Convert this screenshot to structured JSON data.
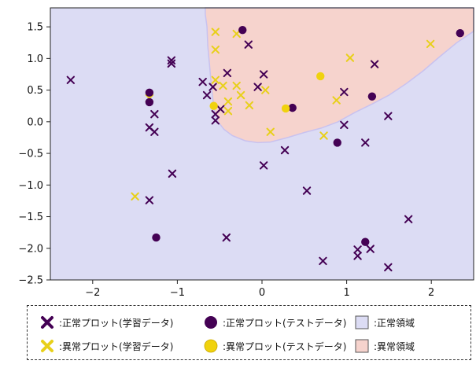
{
  "chart_data": {
    "type": "scatter",
    "xlim": [
      -2.5,
      2.5
    ],
    "ylim": [
      -2.5,
      1.8
    ],
    "x_ticks": [
      -2,
      -1,
      0,
      1,
      2
    ],
    "y_ticks": [
      1.5,
      1.0,
      0.5,
      0.0,
      -0.5,
      -1.0,
      -1.5,
      -2.0,
      -2.5
    ],
    "x_tick_labels": [
      "−2",
      "−1",
      "0",
      "1",
      "2"
    ],
    "y_tick_labels": [
      "1.5",
      "1.0",
      "0.5",
      "0.0",
      "−0.5",
      "−1.0",
      "−1.5",
      "−2.0",
      "−2.5"
    ],
    "grid": false,
    "background_colors": {
      "normal_region": "#dcdcf4",
      "anomaly_region": "#f6d3cd",
      "boundary": "#c9c2ef"
    },
    "anomaly_region_boundary": [
      [
        -0.67,
        1.8
      ],
      [
        -0.67,
        1.7
      ],
      [
        -0.65,
        1.5
      ],
      [
        -0.64,
        1.2
      ],
      [
        -0.62,
        0.9
      ],
      [
        -0.6,
        0.6
      ],
      [
        -0.58,
        0.35
      ],
      [
        -0.56,
        0.15
      ],
      [
        -0.52,
        0.0
      ],
      [
        -0.45,
        -0.12
      ],
      [
        -0.35,
        -0.22
      ],
      [
        -0.2,
        -0.3
      ],
      [
        -0.05,
        -0.33
      ],
      [
        0.1,
        -0.32
      ],
      [
        0.3,
        -0.25
      ],
      [
        0.5,
        -0.17
      ],
      [
        0.7,
        -0.1
      ],
      [
        0.9,
        0.0
      ],
      [
        1.1,
        0.15
      ],
      [
        1.3,
        0.28
      ],
      [
        1.5,
        0.42
      ],
      [
        1.7,
        0.6
      ],
      [
        1.9,
        0.8
      ],
      [
        2.1,
        1.03
      ],
      [
        2.3,
        1.25
      ],
      [
        2.5,
        1.43
      ],
      [
        2.5,
        1.8
      ]
    ],
    "series": [
      {
        "marker": "x",
        "color": "#440154",
        "points": [
          [
            -2.26,
            0.66
          ],
          [
            -1.07,
            0.97
          ],
          [
            -1.07,
            0.92
          ],
          [
            -1.27,
            0.12
          ],
          [
            -1.33,
            -0.09
          ],
          [
            -1.27,
            -0.16
          ],
          [
            -1.06,
            -0.82
          ],
          [
            -1.33,
            -1.24
          ],
          [
            -0.42,
            -1.83
          ],
          [
            -0.7,
            0.63
          ],
          [
            -0.65,
            0.42
          ],
          [
            -0.58,
            0.55
          ],
          [
            -0.55,
            0.12
          ],
          [
            -0.55,
            0.02
          ],
          [
            -0.49,
            0.2
          ],
          [
            -0.41,
            0.77
          ],
          [
            -0.16,
            1.22
          ],
          [
            -0.05,
            0.55
          ],
          [
            0.02,
            0.75
          ],
          [
            0.27,
            -0.45
          ],
          [
            0.02,
            -0.69
          ],
          [
            0.53,
            -1.09
          ],
          [
            0.97,
            0.47
          ],
          [
            0.97,
            -0.05
          ],
          [
            1.22,
            -0.33
          ],
          [
            1.33,
            0.91
          ],
          [
            1.49,
            0.09
          ],
          [
            1.73,
            -1.54
          ],
          [
            0.72,
            -2.2
          ],
          [
            1.13,
            -2.02
          ],
          [
            1.13,
            -2.12
          ],
          [
            1.28,
            -2.01
          ],
          [
            1.49,
            -2.3
          ]
        ]
      },
      {
        "marker": "x",
        "color": "#e8d01a",
        "points": [
          [
            -1.5,
            -1.18
          ],
          [
            -1.33,
            0.37
          ],
          [
            -0.55,
            1.42
          ],
          [
            -0.55,
            1.14
          ],
          [
            -0.55,
            0.66
          ],
          [
            -0.3,
            1.39
          ],
          [
            -0.46,
            0.57
          ],
          [
            -0.4,
            0.32
          ],
          [
            -0.4,
            0.17
          ],
          [
            -0.3,
            0.57
          ],
          [
            -0.25,
            0.42
          ],
          [
            -0.15,
            0.26
          ],
          [
            0.04,
            0.5
          ],
          [
            0.1,
            -0.16
          ],
          [
            0.73,
            -0.22
          ],
          [
            0.88,
            0.34
          ],
          [
            1.04,
            1.01
          ],
          [
            1.99,
            1.23
          ]
        ]
      },
      {
        "marker": "o",
        "color": "#440154",
        "points": [
          [
            -1.33,
            0.46
          ],
          [
            -1.33,
            0.31
          ],
          [
            -0.23,
            1.45
          ],
          [
            0.36,
            0.22
          ],
          [
            0.89,
            -0.33
          ],
          [
            1.3,
            0.4
          ],
          [
            -1.25,
            -1.83
          ],
          [
            1.22,
            -1.9
          ],
          [
            2.34,
            1.4
          ]
        ]
      },
      {
        "marker": "o",
        "color": "#f0d20e",
        "points": [
          [
            -0.57,
            0.25
          ],
          [
            0.28,
            0.21
          ],
          [
            0.69,
            0.72
          ]
        ]
      }
    ]
  },
  "legend": {
    "items": [
      {
        "label": ":正常プロット(学習データ)",
        "marker": "x",
        "color": "#440154"
      },
      {
        "label": ":正常プロット(テストデータ)",
        "marker": "o",
        "color": "#440154"
      },
      {
        "label": ":正常領域",
        "marker": "square",
        "color": "#dcdcf4"
      },
      {
        "label": ":異常プロット(学習データ)",
        "marker": "x",
        "color": "#e8d01a"
      },
      {
        "label": ":異常プロット(テストデータ)",
        "marker": "o",
        "color": "#f0d20e"
      },
      {
        "label": ":異常領域",
        "marker": "square",
        "color": "#f6d3cd"
      }
    ]
  }
}
